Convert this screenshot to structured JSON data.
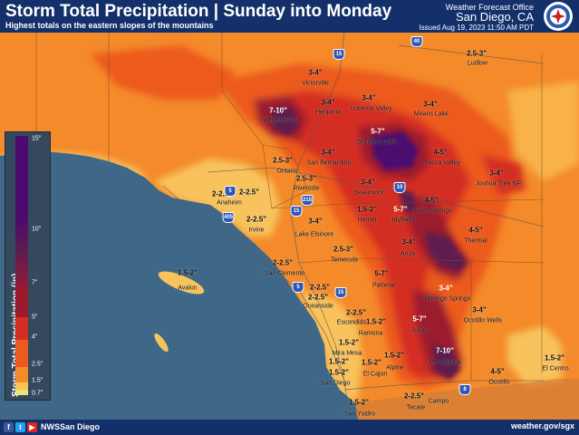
{
  "header": {
    "title": "Storm Total Precipitation | Sunday into Monday",
    "subtitle": "Highest totals on the eastern slopes of the mountains",
    "office_label": "Weather Forecast Office",
    "office_name": "San Diego, CA",
    "issued": "Issued Aug 19, 2023 11:50 AM PDT"
  },
  "legend": {
    "title": "Storm Total Precipitation (in)",
    "ticks": [
      "15\"",
      "10\"",
      "7\"",
      "5\"",
      "4\"",
      "2.5\"",
      "1.5\"",
      "0.7\""
    ],
    "colors": {
      "15": "#4b0a6e",
      "10": "#5e1d4f",
      "7": "#9b1a2e",
      "5": "#d42e24",
      "4": "#ec5a1e",
      "2.5": "#f48a2a",
      "1.5": "#f8c35c",
      "0.7": "#e6e77a"
    }
  },
  "labels": {
    "values": [
      "2.5-3\"",
      "3-4\"",
      "7-10\"",
      "3-4\"",
      "3-4\"",
      "3-4\"",
      "5-7\"",
      "3-4\"",
      "4-5\"",
      "2.5-3\"",
      "3-4\"",
      "2.5-3\"",
      "3-4\"",
      "2-2.5\"",
      "2-2.5\"",
      "4-5\"",
      "1.5-2\"",
      "5-7\"",
      "3-4\"",
      "4-5\"",
      "2.5-3\"",
      "3-4\"",
      "2-2.5\"",
      "5-7\"",
      "1.5-2\"",
      "3-4\"",
      "2-2.5\"",
      "2-2.5\"",
      "5-7\"",
      "3-4\"",
      "1.5-2\"",
      "2-2.5\"",
      "7-10\"",
      "1.5-2\"",
      "1.5-2\"",
      "4-5\"",
      "1.5-2\"",
      "1.5-2\"",
      "2-2.5\"",
      "1.5-2\"",
      "1.5-2\"",
      "1.5-2\"",
      "2-2.5\""
    ],
    "places": [
      "Ludlow",
      "Victorville",
      "Wrightwood",
      "Hesperia",
      "Lucerne Valley",
      "Means Lake",
      "Big Bear Lake",
      "San Bernardino",
      "Yucca Valley",
      "Ontario",
      "Joshua Tree NP",
      "Riverside",
      "Beaumont",
      "Anaheim",
      "Palm Springs",
      "Idyllwild",
      "Irvine",
      "Hemet",
      "Lake Elsinore",
      "Thermal",
      "Temecula",
      "Anza",
      "Avalon",
      "San Clemente",
      "Palomar",
      "Borrego Springs",
      "Oceanside",
      "Escondido",
      "Ramona",
      "Ocotillo Wells",
      "Julian",
      "Mira Mesa",
      "Mt. Laguna",
      "Alpine",
      "El Cajon",
      "El Centro",
      "San Diego",
      "Ocotillo",
      "Campo",
      "Tecate",
      "San Ysidro"
    ],
    "highways": [
      "40",
      "15",
      "10",
      "5",
      "215",
      "15",
      "405",
      "5",
      "15",
      "8"
    ]
  },
  "footer": {
    "social_icons": [
      "facebook-icon",
      "twitter-icon",
      "youtube-icon"
    ],
    "handle": "NWSSan Diego",
    "website": "weather.gov/sgx"
  }
}
